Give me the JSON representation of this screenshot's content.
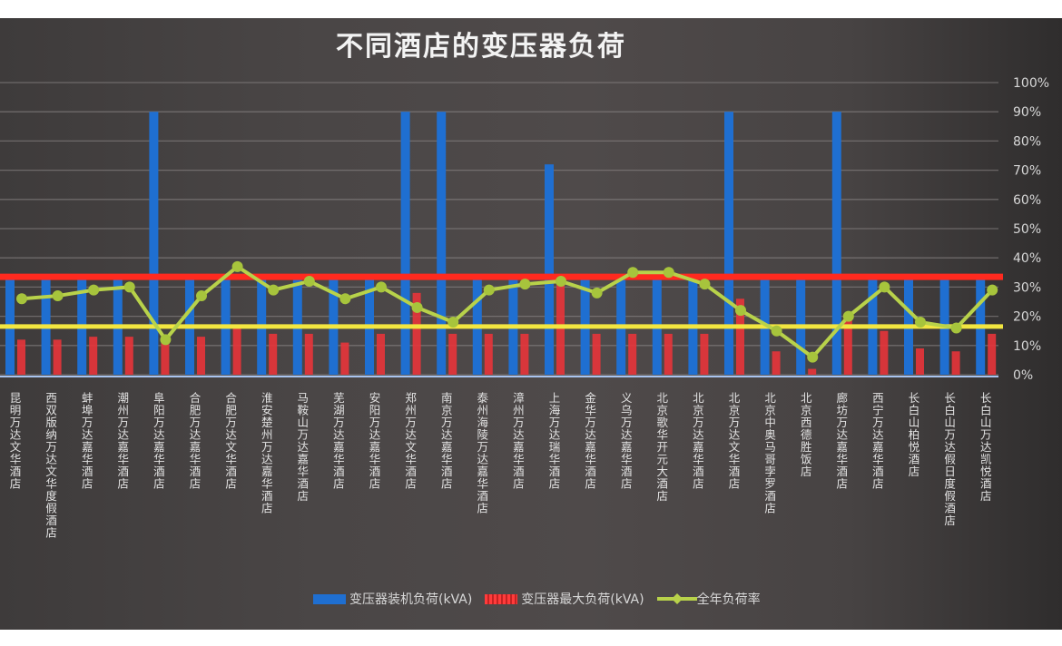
{
  "chart_data": {
    "type": "bar+line",
    "title": "不同酒店的变压器负荷",
    "xlabel": "",
    "ylabel": "",
    "y_right_ticks": [
      "0%",
      "10%",
      "20%",
      "30%",
      "40%",
      "50%",
      "60%",
      "70%",
      "80%",
      "90%",
      "100%"
    ],
    "ylim": [
      0,
      100
    ],
    "grid": true,
    "legend_position": "bottom",
    "categories": [
      "昆明万达文华酒店",
      "西双版纳万达文华度假酒店",
      "蚌埠万达嘉华酒店",
      "潮州万达嘉华酒店",
      "阜阳万达嘉华酒店",
      "合肥万达嘉华酒店",
      "合肥万达文华酒店",
      "淮安楚州万达嘉华酒店",
      "马鞍山万达嘉华酒店",
      "芜湖万达嘉华酒店",
      "安阳万达嘉华酒店",
      "郑州万达文华酒店",
      "南京万达嘉华酒店",
      "泰州海陵万达嘉华酒店",
      "漳州万达嘉华酒店",
      "上海万达瑞华酒店",
      "金华万达嘉华酒店",
      "义乌万达嘉华酒店",
      "北京歌华开元大酒店",
      "北京万达嘉华酒店",
      "北京万达文华酒店",
      "北京中奥马哥孛罗酒店",
      "北京西德胜饭店",
      "廊坊万达嘉华酒店",
      "西宁万达嘉华酒店",
      "长白山柏悦酒店",
      "长白山万达假日度假酒店",
      "长白山万达凯悦酒店"
    ],
    "series": [
      {
        "name": "变压器装机负荷(kVA)",
        "type": "bar",
        "color": "#1f6fd1",
        "values": [
          34,
          34,
          34,
          34,
          90,
          34,
          34,
          34,
          34,
          34,
          34,
          90,
          90,
          34,
          34,
          72,
          34,
          34,
          34,
          34,
          90,
          34,
          34,
          90,
          34,
          34,
          34,
          34
        ]
      },
      {
        "name": "变压器最大负荷(kVA)",
        "type": "bar",
        "color": "#e8343a",
        "values": [
          12,
          12,
          13,
          13,
          12,
          13,
          17,
          14,
          14,
          11,
          14,
          28,
          14,
          14,
          14,
          31,
          14,
          14,
          14,
          14,
          26,
          8,
          2,
          21,
          15,
          9,
          8,
          14
        ]
      },
      {
        "name": "全年负荷率",
        "type": "line",
        "color": "#b8d24a",
        "values": [
          26,
          27,
          29,
          30,
          12,
          27,
          37,
          29,
          32,
          26,
          30,
          23,
          18,
          29,
          31,
          32,
          28,
          35,
          35,
          31,
          22,
          15,
          6,
          20,
          30,
          18,
          16,
          29
        ]
      }
    ],
    "reference_lines": [
      {
        "color": "#ff2a1f",
        "value": 33.5
      },
      {
        "color": "#f2e640",
        "value": 16.5
      }
    ]
  },
  "legend": {
    "items": [
      {
        "label": "变压器装机负荷(kVA)",
        "color": "#1f6fd1"
      },
      {
        "label": "变压器最大负荷(kVA)",
        "color": "#e8343a"
      },
      {
        "label": "全年负荷率",
        "color": "#b8d24a"
      }
    ]
  }
}
